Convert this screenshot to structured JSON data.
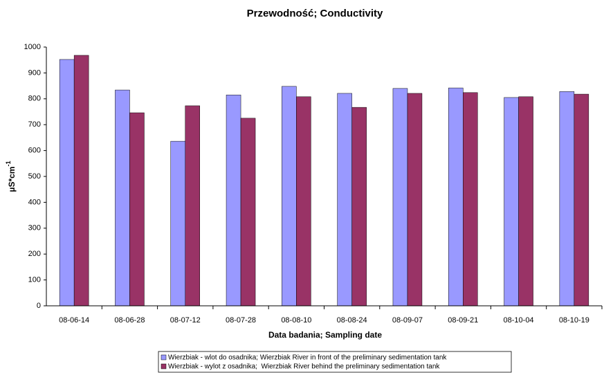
{
  "chart_data": {
    "type": "bar",
    "title": "Przewodność; Conductivity",
    "x_label": "Data badania; Sampling date",
    "y_label": {
      "base": "µS*cm",
      "superscript": "-1"
    },
    "categories": [
      "08-06-14",
      "08-06-28",
      "08-07-12",
      "08-07-28",
      "08-08-10",
      "08-08-24",
      "08-09-07",
      "08-09-21",
      "08-10-04",
      "08-10-19"
    ],
    "series": [
      {
        "name": "Wierzbiak - wlot do osadnika; Wierzbiak River in front of the preliminary sedimentation tank",
        "color": "#9999ff",
        "values": [
          952,
          834,
          636,
          815,
          848,
          821,
          840,
          842,
          805,
          828
        ]
      },
      {
        "name": "Wierzbiak - wylot z osadnika;  Wierzbiak River behind the preliminary sedimentation tank",
        "color": "#993366",
        "values": [
          968,
          746,
          773,
          725,
          808,
          767,
          821,
          824,
          808,
          818
        ]
      }
    ],
    "ylim": [
      0,
      1000
    ],
    "yticks": [
      0,
      100,
      200,
      300,
      400,
      500,
      600,
      700,
      800,
      900,
      1000
    ],
    "grid": false,
    "legend": "bottom"
  }
}
